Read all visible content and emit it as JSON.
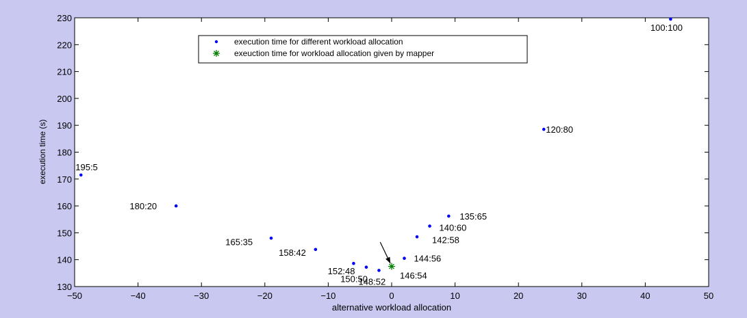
{
  "chart_data": {
    "type": "scatter",
    "xlabel": "alternative workload allocation",
    "ylabel": "execution time (s)",
    "xlim": [
      -50,
      50
    ],
    "ylim": [
      130,
      230
    ],
    "xticks": [
      -50,
      -40,
      -30,
      -20,
      -10,
      0,
      10,
      20,
      30,
      40,
      50
    ],
    "yticks": [
      130,
      140,
      150,
      160,
      170,
      180,
      190,
      200,
      210,
      220,
      230
    ],
    "grid": false,
    "legend_position": "top-center",
    "background_color": "#c8c8f0",
    "series": [
      {
        "name": "execution time for different workload allocation",
        "marker": "dot",
        "color": "#0000ff",
        "points": [
          {
            "x": -49,
            "y": 171.5,
            "label": "195:5"
          },
          {
            "x": -34,
            "y": 160,
            "label": "180:20"
          },
          {
            "x": -19,
            "y": 148,
            "label": "165:35"
          },
          {
            "x": -12,
            "y": 143.8,
            "label": "158:42"
          },
          {
            "x": -6,
            "y": 138.6,
            "label": "152:48"
          },
          {
            "x": -4,
            "y": 137.2,
            "label": "150:50"
          },
          {
            "x": -2,
            "y": 136,
            "label": "148:52"
          },
          {
            "x": 2,
            "y": 140.5,
            "label": "144:56"
          },
          {
            "x": 4,
            "y": 148.5,
            "label": "142:58"
          },
          {
            "x": 6,
            "y": 152.5,
            "label": "140:60"
          },
          {
            "x": 9,
            "y": 156.2,
            "label": "135:65"
          },
          {
            "x": 24,
            "y": 188.5,
            "label": "120:80"
          },
          {
            "x": 44,
            "y": 229.5,
            "label": "100:100"
          }
        ]
      },
      {
        "name": "exeuction time for workload allocation given by mapper",
        "marker": "asterisk",
        "color": "#008000",
        "points": [
          {
            "x": 0,
            "y": 137.5,
            "label": "146:54"
          }
        ]
      }
    ],
    "annotations": [
      {
        "type": "arrow",
        "from": [
          -1.8,
          146.5
        ],
        "to": [
          -0.2,
          138.6
        ],
        "color": "#000000"
      }
    ]
  }
}
